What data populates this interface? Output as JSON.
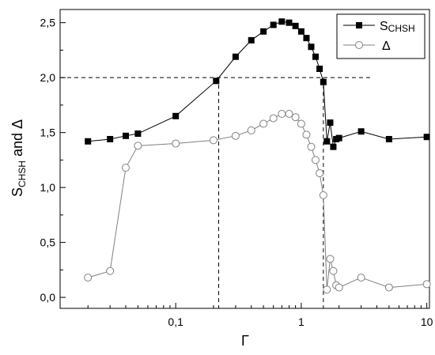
{
  "chart_data": {
    "type": "scatter",
    "xscale": "log",
    "xlim": [
      0.012,
      10.5
    ],
    "ylim": [
      -0.1,
      2.62
    ],
    "xticks": [
      0.1,
      1,
      10
    ],
    "xtick_labels": [
      "0,1",
      "1",
      "10"
    ],
    "yticks": [
      0.0,
      0.5,
      1.0,
      1.5,
      2.0,
      2.5
    ],
    "ytick_labels": [
      "0,0",
      "0,5",
      "1,0",
      "1,5",
      "2,0",
      "2,5"
    ],
    "xlabel": "Γ",
    "ylabel": "S",
    "ylabel_sub": "CHSH",
    "ylabel_suffix": " and Δ",
    "grid": false,
    "legend_position": "top-right",
    "reference_lines": {
      "horizontal_y": 2.0,
      "vertical_x": [
        0.22,
        1.5
      ]
    },
    "series": [
      {
        "name": "S",
        "name_sub": "CHSH",
        "marker": "filled-square",
        "color": "#000000",
        "x": [
          0.02,
          0.03,
          0.04,
          0.05,
          0.1,
          0.21,
          0.3,
          0.4,
          0.5,
          0.6,
          0.7,
          0.8,
          0.9,
          1.0,
          1.1,
          1.2,
          1.3,
          1.4,
          1.5,
          1.6,
          1.7,
          1.8,
          1.9,
          2.0,
          3.0,
          5.0,
          10.0
        ],
        "y": [
          1.42,
          1.44,
          1.47,
          1.49,
          1.65,
          1.97,
          2.19,
          2.34,
          2.42,
          2.48,
          2.51,
          2.5,
          2.47,
          2.42,
          2.36,
          2.28,
          2.19,
          2.08,
          1.96,
          1.42,
          1.59,
          1.37,
          1.44,
          1.45,
          1.51,
          1.44,
          1.46
        ]
      },
      {
        "name": "Δ",
        "marker": "open-circle",
        "color": "#808080",
        "x": [
          0.02,
          0.03,
          0.04,
          0.05,
          0.1,
          0.2,
          0.3,
          0.4,
          0.5,
          0.6,
          0.7,
          0.8,
          0.9,
          1.0,
          1.1,
          1.2,
          1.3,
          1.4,
          1.5,
          1.6,
          1.7,
          1.8,
          1.9,
          2.0,
          3.0,
          5.0,
          10.0
        ],
        "y": [
          0.18,
          0.24,
          1.18,
          1.38,
          1.4,
          1.43,
          1.47,
          1.52,
          1.58,
          1.63,
          1.67,
          1.67,
          1.64,
          1.58,
          1.48,
          1.37,
          1.25,
          1.13,
          0.93,
          0.07,
          0.35,
          0.24,
          0.11,
          0.09,
          0.18,
          0.09,
          0.12
        ]
      }
    ]
  }
}
